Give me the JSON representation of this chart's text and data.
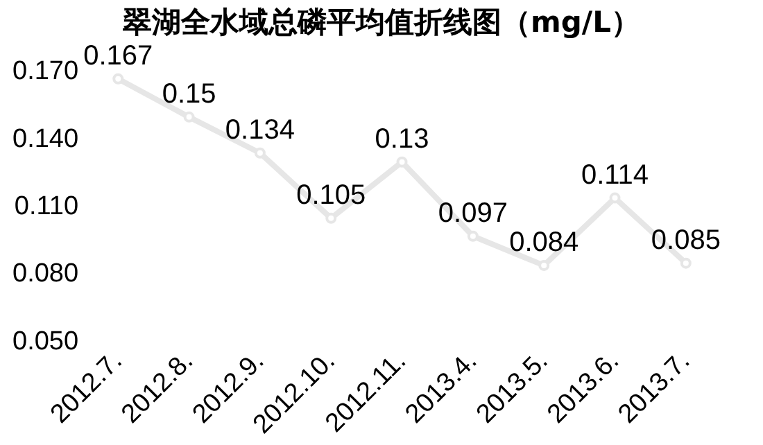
{
  "chart_data": {
    "type": "line",
    "title": "翠湖全水域总磷平均值折线图（mg/L）",
    "categories": [
      "2012.7.",
      "2012.8.",
      "2012.9.",
      "2012.10.",
      "2012.11.",
      "2013.4.",
      "2013.5.",
      "2013.6.",
      "2013.7."
    ],
    "series": [
      {
        "color": "#e6e6e6",
        "values": [
          0.167,
          0.15,
          0.134,
          0.105,
          0.13,
          0.097,
          0.084,
          0.114,
          0.085
        ]
      }
    ],
    "ylim": [
      0.05,
      0.17
    ],
    "yticks": [
      {
        "value": 0.05,
        "label": "0.050"
      },
      {
        "value": 0.08,
        "label": "0.080"
      },
      {
        "value": 0.11,
        "label": "0.110"
      },
      {
        "value": 0.14,
        "label": "0.140"
      },
      {
        "value": 0.17,
        "label": "0.170"
      }
    ],
    "grid": false,
    "legend": false,
    "marker": "circle",
    "line_style": "solid",
    "data_labels": true
  }
}
